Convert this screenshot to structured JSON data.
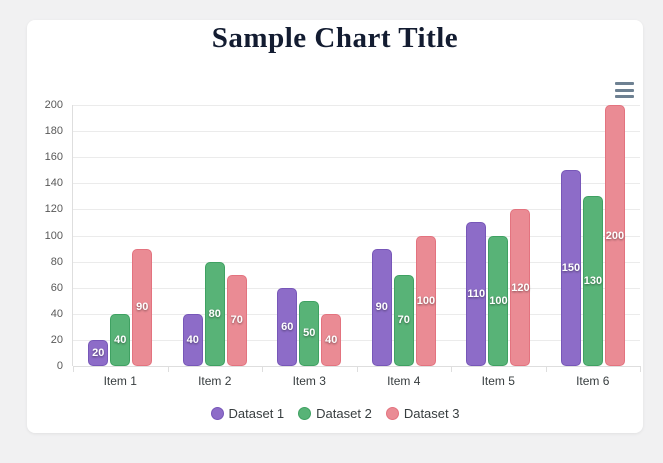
{
  "title": "Sample Chart Title",
  "toolbar": {
    "menu_icon": "hamburger-menu"
  },
  "colors": {
    "page_background": "#f1f1f2",
    "card_background": "#ffffff",
    "title_text": "#131c31",
    "gridline": "#ebebeb",
    "axis_label": "#595959",
    "category_label": "#373d3f",
    "menu_icon": "#6e8192",
    "bar_value_label": "#ffffff"
  },
  "chart_data": {
    "type": "bar",
    "title": "Sample Chart Title",
    "categories": [
      "Item 1",
      "Item 2",
      "Item 3",
      "Item 4",
      "Item 5",
      "Item 6"
    ],
    "series": [
      {
        "name": "Dataset 1",
        "color": "#8d6cc8",
        "border_color": "#7757b8",
        "values": [
          20,
          40,
          60,
          90,
          110,
          150
        ]
      },
      {
        "name": "Dataset 2",
        "color": "#58b377",
        "border_color": "#3fa162",
        "values": [
          40,
          80,
          50,
          70,
          100,
          130
        ]
      },
      {
        "name": "Dataset 3",
        "color": "#ea8b94",
        "border_color": "#e3737f",
        "values": [
          90,
          70,
          40,
          100,
          120,
          200
        ]
      }
    ],
    "ylim": [
      0,
      200
    ],
    "ytick_step": 20,
    "ytick_labels": [
      "0",
      "20",
      "40",
      "60",
      "80",
      "100",
      "120",
      "140",
      "160",
      "180",
      "200"
    ],
    "grid": true,
    "legend_position": "bottom",
    "value_labels_shown": true
  }
}
